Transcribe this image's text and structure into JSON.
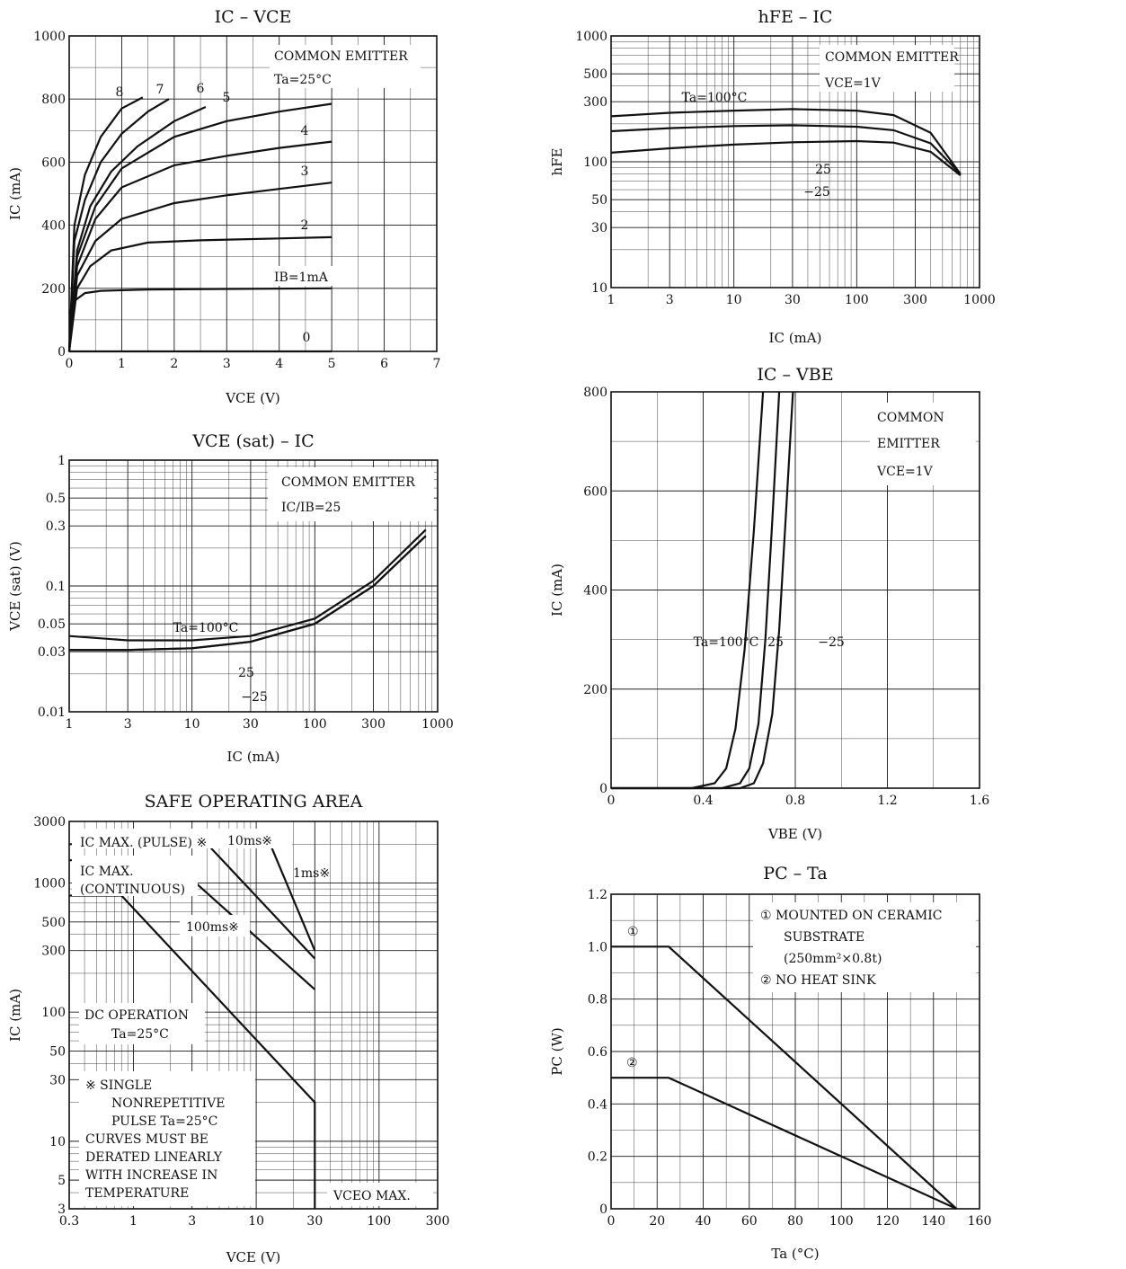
{
  "chart_data": [
    {
      "id": "ic_vce",
      "type": "line",
      "title": "IC – VCE",
      "xlabel": "VCE (V)",
      "ylabel": "IC (mA)",
      "xlim": [
        0,
        7
      ],
      "ylim": [
        0,
        1000
      ],
      "xticks": [
        "0",
        "1",
        "2",
        "3",
        "4",
        "5",
        "6",
        "7"
      ],
      "yticks": [
        "0",
        "200",
        "400",
        "600",
        "800",
        "1000"
      ],
      "grid": true,
      "annotations": [
        "COMMON EMITTER",
        "Ta=25°C",
        "IB=1mA"
      ],
      "series": [
        {
          "name": "8",
          "x": [
            0,
            0.1,
            0.3,
            0.6,
            1.0,
            1.4
          ],
          "y": [
            0,
            400,
            560,
            680,
            770,
            805
          ]
        },
        {
          "name": "7",
          "x": [
            0,
            0.1,
            0.3,
            0.6,
            1.0,
            1.5,
            1.9
          ],
          "y": [
            0,
            350,
            480,
            600,
            690,
            760,
            800
          ]
        },
        {
          "name": "6",
          "x": [
            0,
            0.15,
            0.4,
            0.8,
            1.3,
            2.0,
            2.6
          ],
          "y": [
            0,
            320,
            460,
            570,
            650,
            730,
            775
          ]
        },
        {
          "name": "5",
          "x": [
            0,
            0.15,
            0.5,
            1.0,
            2.0,
            3.0,
            4.0,
            5.0
          ],
          "y": [
            0,
            300,
            460,
            580,
            680,
            730,
            760,
            785
          ]
        },
        {
          "name": "4",
          "x": [
            0,
            0.15,
            0.5,
            1.0,
            2.0,
            3.0,
            4.0,
            5.0
          ],
          "y": [
            0,
            270,
            420,
            520,
            590,
            620,
            645,
            665
          ]
        },
        {
          "name": "3",
          "x": [
            0,
            0.15,
            0.5,
            1.0,
            2.0,
            3.0,
            4.0,
            5.0
          ],
          "y": [
            0,
            240,
            350,
            420,
            470,
            495,
            515,
            535
          ]
        },
        {
          "name": "2",
          "x": [
            0,
            0.15,
            0.4,
            0.8,
            1.5,
            2.5,
            4.0,
            5.0
          ],
          "y": [
            0,
            200,
            270,
            320,
            345,
            352,
            358,
            362
          ]
        },
        {
          "name": "1",
          "x": [
            0,
            0.1,
            0.3,
            0.6,
            1.5,
            3.0,
            5.0
          ],
          "y": [
            120,
            160,
            185,
            192,
            196,
            198,
            200
          ]
        },
        {
          "name": "0",
          "x": [
            0,
            5.0
          ],
          "y": [
            0,
            0
          ]
        }
      ]
    },
    {
      "id": "hfe_ic",
      "type": "line",
      "title": "hFE – IC",
      "xlabel": "IC (mA)",
      "ylabel": "hFE",
      "xscale": "log",
      "yscale": "log",
      "xlim": [
        1,
        1000
      ],
      "ylim": [
        10,
        1000
      ],
      "xticks": [
        "1",
        "3",
        "10",
        "30",
        "100",
        "300",
        "1000"
      ],
      "yticks": [
        "10",
        "30",
        "50",
        "100",
        "300",
        "500",
        "1000"
      ],
      "grid": true,
      "annotations": [
        "COMMON EMITTER",
        "VCE=1V"
      ],
      "series": [
        {
          "name": "Ta=100°C",
          "x": [
            1,
            3,
            10,
            30,
            100,
            200,
            400,
            700
          ],
          "y": [
            230,
            245,
            255,
            262,
            255,
            235,
            170,
            80
          ]
        },
        {
          "name": "25",
          "x": [
            1,
            3,
            10,
            30,
            100,
            200,
            400,
            700
          ],
          "y": [
            175,
            185,
            192,
            195,
            190,
            178,
            140,
            80
          ]
        },
        {
          "name": "−25",
          "x": [
            1,
            3,
            10,
            30,
            100,
            200,
            400,
            700
          ],
          "y": [
            118,
            128,
            137,
            143,
            146,
            142,
            120,
            78
          ]
        }
      ]
    },
    {
      "id": "vcesat_ic",
      "type": "line",
      "title": "VCE (sat) – IC",
      "xlabel": "IC (mA)",
      "ylabel": "VCE (sat) (V)",
      "xscale": "log",
      "yscale": "log",
      "xlim": [
        1,
        1000
      ],
      "ylim": [
        0.01,
        1
      ],
      "xticks": [
        "1",
        "3",
        "10",
        "30",
        "100",
        "300",
        "1000"
      ],
      "yticks": [
        "0.01",
        "0.03",
        "0.05",
        "0.1",
        "0.3",
        "0.5",
        "1"
      ],
      "grid": true,
      "annotations": [
        "COMMON EMITTER",
        "IC/IB=25"
      ],
      "series": [
        {
          "name": "Ta=100°C",
          "x": [
            1,
            3,
            10,
            30,
            100,
            300,
            800
          ],
          "y": [
            0.04,
            0.037,
            0.037,
            0.04,
            0.055,
            0.11,
            0.28
          ]
        },
        {
          "name": "25",
          "x": [
            1,
            3,
            10,
            30,
            100,
            300,
            800
          ],
          "y": [
            0.031,
            0.031,
            0.032,
            0.036,
            0.05,
            0.1,
            0.25
          ]
        },
        {
          "name": "−25",
          "x": [
            1,
            3,
            10,
            30,
            100,
            300,
            800
          ],
          "y": [
            0.031,
            0.031,
            0.032,
            0.036,
            0.05,
            0.1,
            0.25
          ]
        }
      ]
    },
    {
      "id": "ic_vbe",
      "type": "line",
      "title": "IC – VBE",
      "xlabel": "VBE (V)",
      "ylabel": "IC (mA)",
      "xlim": [
        0,
        1.6
      ],
      "ylim": [
        0,
        800
      ],
      "xticks": [
        "0",
        "0.4",
        "0.8",
        "1.2",
        "1.6"
      ],
      "yticks": [
        "0",
        "200",
        "400",
        "600",
        "800"
      ],
      "grid": true,
      "annotations": [
        "COMMON",
        "EMITTER",
        "VCE=1V"
      ],
      "series": [
        {
          "name": "Ta=100°C",
          "x": [
            0,
            0.35,
            0.45,
            0.5,
            0.54,
            0.58,
            0.62,
            0.66
          ],
          "y": [
            0,
            0,
            10,
            40,
            120,
            280,
            520,
            800
          ]
        },
        {
          "name": "25",
          "x": [
            0,
            0.48,
            0.56,
            0.6,
            0.64,
            0.67,
            0.7,
            0.73
          ],
          "y": [
            0,
            0,
            10,
            40,
            130,
            300,
            540,
            800
          ]
        },
        {
          "name": "−25",
          "x": [
            0,
            0.56,
            0.62,
            0.66,
            0.7,
            0.73,
            0.76,
            0.79
          ],
          "y": [
            0,
            0,
            10,
            50,
            150,
            320,
            560,
            800
          ]
        }
      ]
    },
    {
      "id": "soa",
      "type": "line",
      "title": "SAFE OPERATING AREA",
      "xlabel": "VCE (V)",
      "ylabel": "IC (mA)",
      "xscale": "log",
      "yscale": "log",
      "xlim": [
        0.3,
        300
      ],
      "ylim": [
        3,
        3000
      ],
      "xticks": [
        "0.3",
        "1",
        "3",
        "10",
        "30",
        "100",
        "300"
      ],
      "yticks": [
        "3",
        "5",
        "10",
        "30",
        "50",
        "100",
        "300",
        "500",
        "1000",
        "3000"
      ],
      "grid": true,
      "annotations": [
        "IC MAX. (PULSE) ※",
        "10ms※",
        "IC MAX.",
        "(CONTINUOUS)",
        "1ms※",
        "100ms※",
        "DC OPERATION",
        "Ta=25°C",
        "※ SINGLE",
        "NONREPETITIVE",
        "PULSE Ta=25°C",
        "CURVES MUST BE",
        "DERATED LINEARLY",
        "WITH INCREASE IN",
        "TEMPERATURE",
        "VCEO MAX."
      ],
      "series": [
        {
          "name": "DC",
          "x": [
            0.3,
            0.8,
            30,
            30
          ],
          "y": [
            800,
            800,
            20,
            3
          ]
        },
        {
          "name": "100ms",
          "x": [
            0.3,
            2.0,
            30
          ],
          "y": [
            1500,
            1500,
            150
          ]
        },
        {
          "name": "10ms",
          "x": [
            0.3,
            4.0,
            30
          ],
          "y": [
            2000,
            2000,
            260
          ]
        },
        {
          "name": "1ms",
          "x": [
            13,
            30
          ],
          "y": [
            2000,
            300
          ]
        }
      ]
    },
    {
      "id": "pc_ta",
      "type": "line",
      "title": "PC – Ta",
      "xlabel": "Ta (°C)",
      "ylabel": "PC (W)",
      "xlim": [
        0,
        160
      ],
      "ylim": [
        0,
        1.2
      ],
      "xticks": [
        "0",
        "20",
        "40",
        "60",
        "80",
        "100",
        "120",
        "140",
        "160"
      ],
      "yticks": [
        "0",
        "0.2",
        "0.4",
        "0.6",
        "0.8",
        "1.0",
        "1.2"
      ],
      "grid": true,
      "annotations": [
        "① MOUNTED ON CERAMIC",
        "SUBSTRATE",
        "(250mm²×0.8t)",
        "② NO HEAT SINK",
        "①",
        "②"
      ],
      "series": [
        {
          "name": "①",
          "x": [
            0,
            25,
            150
          ],
          "y": [
            1.0,
            1.0,
            0
          ]
        },
        {
          "name": "②",
          "x": [
            0,
            25,
            150
          ],
          "y": [
            0.5,
            0.5,
            0
          ]
        }
      ]
    }
  ]
}
